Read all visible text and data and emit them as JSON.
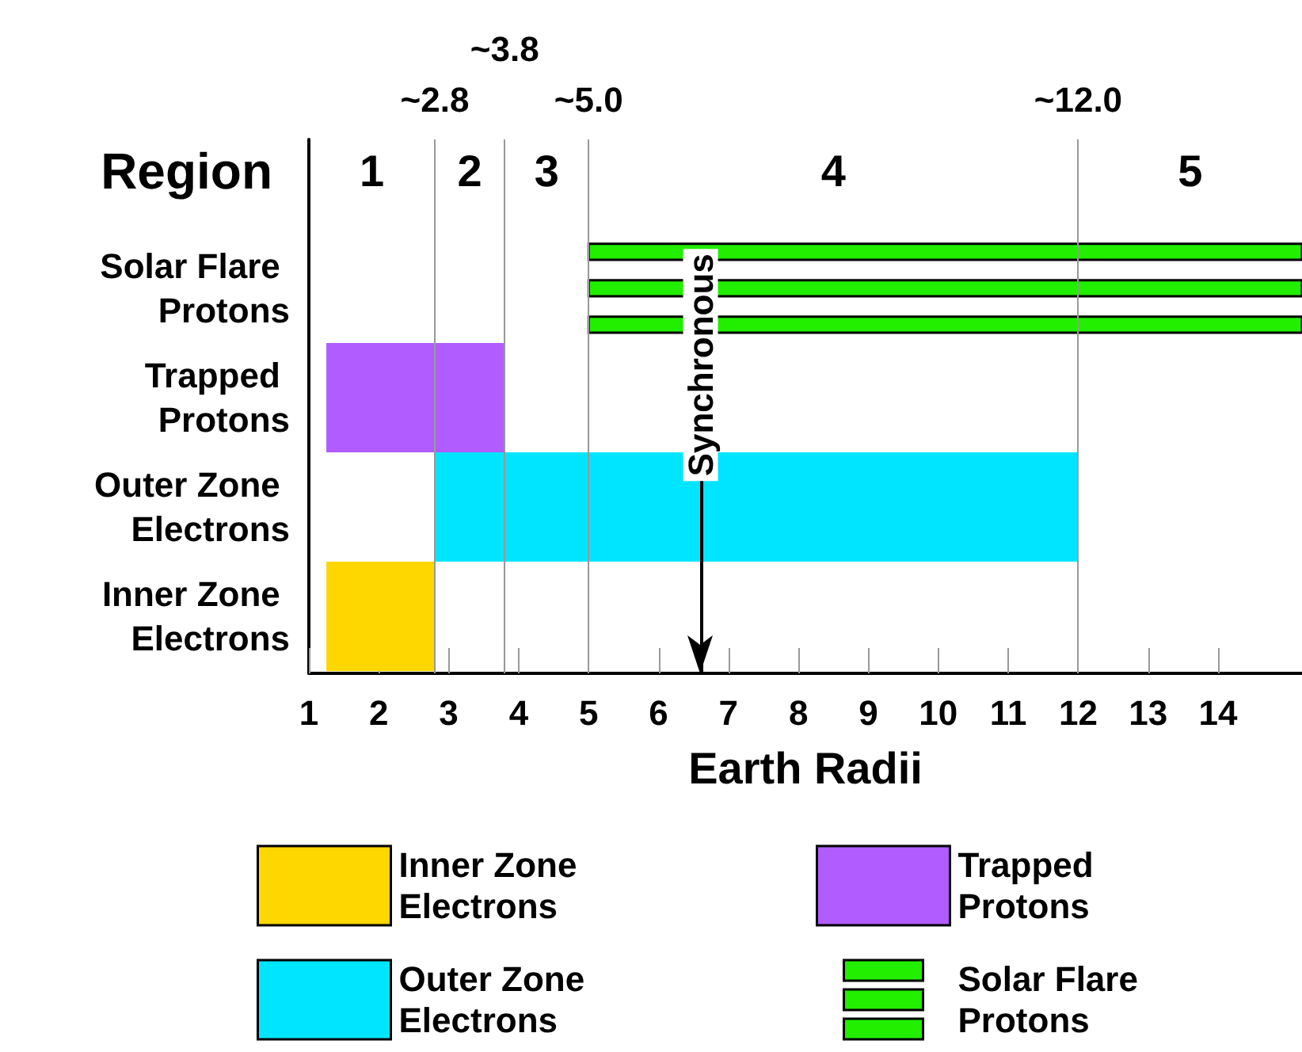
{
  "chart_data": {
    "type": "bar",
    "orientation": "horizontal",
    "xlabel": "Earth Radii",
    "categories": [
      "Solar Flare Protons",
      "Trapped Protons",
      "Outer Zone Electrons",
      "Inner Zone Electrons"
    ],
    "xlim": [
      1,
      15.2
    ],
    "xticks": [
      1,
      2,
      3,
      4,
      5,
      6,
      7,
      8,
      9,
      10,
      11,
      12,
      13,
      14
    ],
    "legend": "bottom",
    "series": [
      {
        "name": "Inner Zone Electrons",
        "color": "#ffd700",
        "values": [
          null,
          null,
          null,
          1.55
        ],
        "base": [
          null,
          null,
          null,
          1.25
        ]
      },
      {
        "name": "Trapped Protons",
        "color": "#b05cff",
        "values": [
          null,
          2.55,
          null,
          null
        ],
        "base": [
          null,
          1.25,
          null,
          null
        ]
      },
      {
        "name": "Outer Zone Electrons",
        "color": "#00e5ff",
        "values": [
          null,
          null,
          9.2,
          null
        ],
        "base": [
          null,
          null,
          2.8,
          null
        ]
      },
      {
        "name": "Solar Flare Protons",
        "color": "#22ee00",
        "values": [
          10.2,
          null,
          null,
          null
        ],
        "base": [
          5,
          null,
          null,
          null
        ]
      },
      {
        "color": "#22ee00",
        "values": [
          10.2,
          null,
          null,
          null
        ],
        "base": [
          5,
          null,
          null,
          null
        ]
      },
      {
        "color": "#22ee00",
        "values": [
          10.2,
          null,
          null,
          null
        ],
        "base": [
          5,
          null,
          null,
          null
        ]
      }
    ],
    "ref_lines": [
      {
        "axis": "x",
        "value": 2.8,
        "label": "~2.8",
        "color": "#999999"
      },
      {
        "axis": "x",
        "value": 3.8,
        "label": "~3.8",
        "color": "#999999"
      },
      {
        "axis": "x",
        "value": 5.0,
        "label": "~5.0",
        "color": "#999999"
      },
      {
        "axis": "x",
        "value": 12.0,
        "label": "~12.0",
        "color": "#999999"
      },
      {
        "axis": "x",
        "value": 6.6,
        "label": "Synchronous",
        "color": "#000000"
      }
    ],
    "annotations": [
      "Region",
      "1",
      "2",
      "3",
      "4",
      "5"
    ]
  }
}
